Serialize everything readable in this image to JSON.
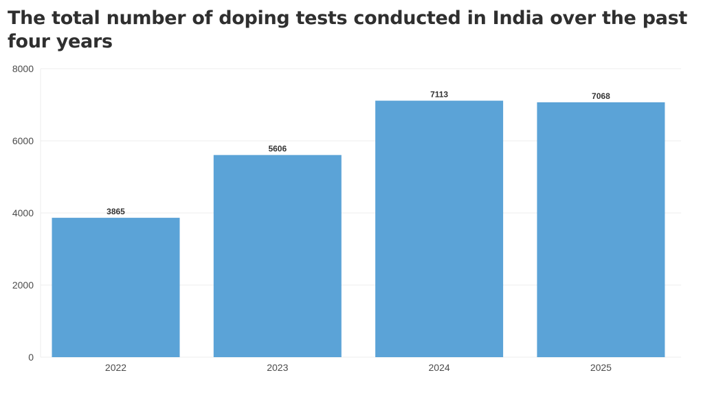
{
  "chart_data": {
    "type": "bar",
    "title": "The total number of doping tests conducted in India over the past four years",
    "categories": [
      "2022",
      "2023",
      "2024",
      "2025"
    ],
    "values": [
      3865,
      5606,
      7113,
      7068
    ],
    "data_labels": [
      "3865",
      "5606",
      "7113",
      "7068"
    ],
    "y_ticks": [
      "0",
      "2000",
      "4000",
      "6000",
      "8000"
    ],
    "ylim": [
      0,
      8000
    ],
    "xlabel": "",
    "ylabel": "",
    "grid": true,
    "legend": "none",
    "bar_color": "#5ba3d7"
  }
}
